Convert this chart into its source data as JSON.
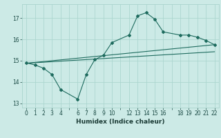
{
  "xlabel": "Humidex (Indice chaleur)",
  "bg_color": "#cceae6",
  "line_color": "#1e6b5e",
  "grid_color": "#aad4ce",
  "xlim": [
    -0.5,
    22.5
  ],
  "ylim": [
    12.8,
    17.65
  ],
  "yticks": [
    13,
    14,
    15,
    16,
    17
  ],
  "xticks": [
    0,
    1,
    2,
    3,
    4,
    5,
    6,
    7,
    8,
    9,
    10,
    11,
    12,
    13,
    14,
    15,
    16,
    17,
    18,
    19,
    20,
    21,
    22
  ],
  "xtick_labels": [
    "0",
    "1",
    "2",
    "3",
    "4",
    "",
    "6",
    "7",
    "8",
    "9",
    "10",
    "",
    "12",
    "13",
    "14",
    "15",
    "16",
    "",
    "18",
    "19",
    "20",
    "21",
    "22"
  ],
  "line1_x": [
    0,
    1,
    2,
    3,
    4,
    6,
    7,
    8,
    9,
    10,
    12,
    13,
    14,
    15,
    16,
    18,
    19,
    20,
    21,
    22
  ],
  "line1_y": [
    14.9,
    14.8,
    14.65,
    14.35,
    13.65,
    13.2,
    14.35,
    15.05,
    15.25,
    15.85,
    16.2,
    17.1,
    17.25,
    16.95,
    16.35,
    16.2,
    16.2,
    16.1,
    15.95,
    15.75
  ],
  "line3_x": [
    0,
    22
  ],
  "line3_y": [
    14.88,
    15.75
  ],
  "line4_x": [
    0,
    22
  ],
  "line4_y": [
    14.88,
    15.42
  ],
  "xlabel_fontsize": 6.5,
  "tick_fontsize": 5.5
}
